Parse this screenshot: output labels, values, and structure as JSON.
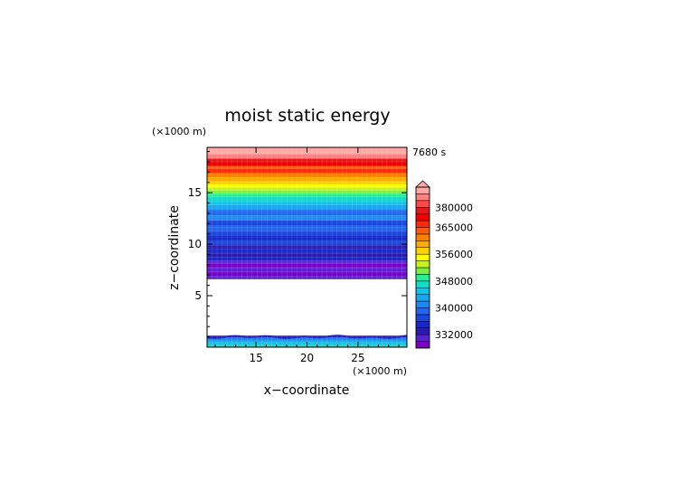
{
  "chart_data": {
    "type": "heatmap",
    "title": "moist static energy",
    "time_label": "7680 s",
    "xlabel": "x−coordinate",
    "ylabel": "z−coordinate",
    "x_unit": "(×1000 m)",
    "y_unit": "(×1000 m)",
    "xlim": [
      10.2,
      29.8
    ],
    "ylim": [
      0,
      19.4
    ],
    "x_ticks": [
      {
        "value": 15,
        "label": "15"
      },
      {
        "value": 20,
        "label": "20"
      },
      {
        "value": 25,
        "label": "25"
      }
    ],
    "y_ticks": [
      {
        "value": 5,
        "label": "5"
      },
      {
        "value": 10,
        "label": "10"
      },
      {
        "value": 15,
        "label": "15"
      }
    ],
    "colorbar": {
      "levels": [
        328000,
        330000,
        332000,
        334000,
        336000,
        338000,
        340000,
        342000,
        344000,
        346000,
        348000,
        350000,
        352000,
        354000,
        356000,
        358000,
        360000,
        362500,
        365000,
        370000,
        375000,
        380000,
        385000,
        390000
      ],
      "colors": [
        "#7a00c8",
        "#5a20d8",
        "#2a1ab0",
        "#1828c8",
        "#1c46dc",
        "#2266f0",
        "#1e88f2",
        "#16a6f0",
        "#10c4e8",
        "#10dcc4",
        "#28f090",
        "#7cf040",
        "#c8f020",
        "#ffff00",
        "#ffd200",
        "#ffaa00",
        "#ff8000",
        "#ff5a14",
        "#ff2a0a",
        "#f00000",
        "#e41818",
        "#ff4848",
        "#ff7e7e",
        "#ffa8a8"
      ],
      "labels": [
        {
          "value": 332000,
          "label": "332000"
        },
        {
          "value": 340000,
          "label": "340000"
        },
        {
          "value": 348000,
          "label": "348000"
        },
        {
          "value": 356000,
          "label": "356000"
        },
        {
          "value": 365000,
          "label": "365000"
        },
        {
          "value": 380000,
          "label": "380000"
        }
      ],
      "extend": "max"
    },
    "bands": [
      {
        "z0": 0.0,
        "z1": 0.2,
        "c": 9
      },
      {
        "z0": 0.2,
        "z1": 0.45,
        "c": 8
      },
      {
        "z0": 0.45,
        "z1": 0.65,
        "c": 7
      },
      {
        "z0": 0.65,
        "z1": 0.8,
        "c": 6
      },
      {
        "z0": 0.8,
        "z1": 0.95,
        "c": 5
      },
      {
        "z0": 0.95,
        "z1": 1.12,
        "c": 2
      },
      {
        "z0": 6.6,
        "z1": 6.9,
        "c": 1
      },
      {
        "z0": 6.9,
        "z1": 7.3,
        "c": 0
      },
      {
        "z0": 7.3,
        "z1": 7.7,
        "c": 1
      },
      {
        "z0": 7.7,
        "z1": 8.1,
        "c": 0
      },
      {
        "z0": 8.1,
        "z1": 8.4,
        "c": 1
      },
      {
        "z0": 8.4,
        "z1": 8.7,
        "c": 3
      },
      {
        "z0": 8.7,
        "z1": 9.1,
        "c": 2
      },
      {
        "z0": 9.1,
        "z1": 9.5,
        "c": 3
      },
      {
        "z0": 9.5,
        "z1": 9.9,
        "c": 2
      },
      {
        "z0": 9.9,
        "z1": 10.4,
        "c": 4
      },
      {
        "z0": 10.4,
        "z1": 10.8,
        "c": 3
      },
      {
        "z0": 10.8,
        "z1": 11.3,
        "c": 4
      },
      {
        "z0": 11.3,
        "z1": 11.8,
        "c": 5
      },
      {
        "z0": 11.8,
        "z1": 12.3,
        "c": 4
      },
      {
        "z0": 12.3,
        "z1": 12.8,
        "c": 6
      },
      {
        "z0": 12.8,
        "z1": 13.3,
        "c": 5
      },
      {
        "z0": 13.3,
        "z1": 13.8,
        "c": 7
      },
      {
        "z0": 13.8,
        "z1": 14.2,
        "c": 8
      },
      {
        "z0": 14.2,
        "z1": 14.6,
        "c": 9
      },
      {
        "z0": 14.6,
        "z1": 14.9,
        "c": 10
      },
      {
        "z0": 14.9,
        "z1": 15.2,
        "c": 11
      },
      {
        "z0": 15.2,
        "z1": 15.5,
        "c": 12
      },
      {
        "z0": 15.5,
        "z1": 15.8,
        "c": 13
      },
      {
        "z0": 15.8,
        "z1": 16.1,
        "c": 14
      },
      {
        "z0": 16.1,
        "z1": 16.5,
        "c": 15
      },
      {
        "z0": 16.5,
        "z1": 16.9,
        "c": 16
      },
      {
        "z0": 16.9,
        "z1": 17.3,
        "c": 18
      },
      {
        "z0": 17.3,
        "z1": 17.6,
        "c": 17
      },
      {
        "z0": 17.6,
        "z1": 18.0,
        "c": 19
      },
      {
        "z0": 18.0,
        "z1": 18.3,
        "c": 20
      },
      {
        "z0": 18.3,
        "z1": 18.7,
        "c": 22
      },
      {
        "z0": 18.7,
        "z1": 19.4,
        "c": 23
      }
    ]
  }
}
